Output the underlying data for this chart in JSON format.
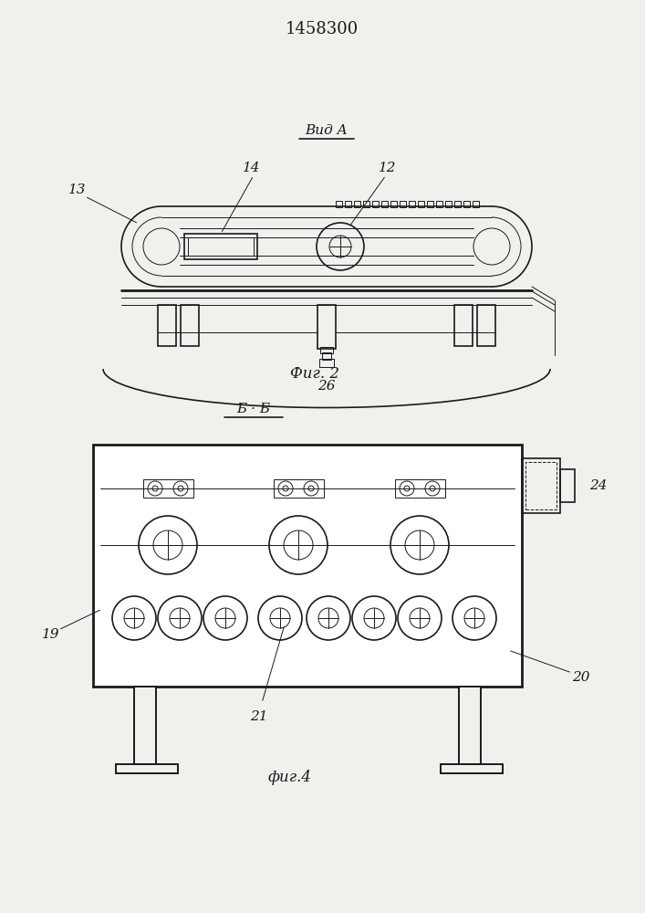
{
  "title": "1458300",
  "fig2_label": "Фиг. 2",
  "fig4_label": "фиг.4",
  "vid_a_label": "Вид A",
  "bb_label": "Б · Б",
  "bg_color": "#f2f0ed",
  "line_color": "#1a1a1a",
  "label_13": "13",
  "label_14": "14",
  "label_12": "12",
  "label_26": "26",
  "label_19": "19",
  "label_20": "20",
  "label_21": "21",
  "label_24": "24"
}
